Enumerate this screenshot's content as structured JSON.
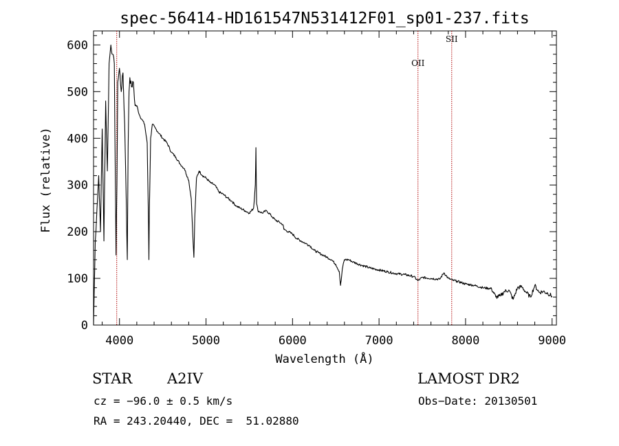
{
  "chart_data": {
    "type": "line",
    "title": "spec-56414-HD161547N531412F01_sp01-237.fits",
    "xlabel": "Wavelength (Å)",
    "ylabel": "Flux (relative)",
    "xlim": [
      3700,
      9050
    ],
    "ylim": [
      0,
      630
    ],
    "xticks": [
      4000,
      5000,
      6000,
      7000,
      8000,
      9000
    ],
    "yticks": [
      0,
      100,
      200,
      300,
      400,
      500,
      600
    ],
    "line_color": "#000000",
    "marker_color": "#b00000",
    "series": [
      {
        "x": [
          3700,
          3720,
          3740,
          3760,
          3780,
          3800,
          3820,
          3840,
          3860,
          3880,
          3900,
          3920,
          3940,
          3960,
          3970,
          3980,
          4000,
          4020,
          4040,
          4060,
          4080,
          4090,
          4100,
          4110,
          4120,
          4140,
          4160,
          4180,
          4200,
          4230,
          4260,
          4290,
          4320,
          4335,
          4340,
          4345,
          4360,
          4380,
          4420,
          4460,
          4500,
          4550,
          4600,
          4650,
          4700,
          4750,
          4800,
          4830,
          4850,
          4860,
          4870,
          4890,
          4920,
          4960,
          5000,
          5050,
          5100,
          5150,
          5200,
          5250,
          5300,
          5350,
          5400,
          5450,
          5500,
          5550,
          5570,
          5577,
          5585,
          5600,
          5650,
          5700,
          5750,
          5800,
          5850,
          5890,
          5900,
          5950,
          6000,
          6050,
          6100,
          6150,
          6200,
          6250,
          6300,
          6350,
          6400,
          6450,
          6500,
          6540,
          6555,
          6563,
          6575,
          6600,
          6650,
          6700,
          6800,
          6900,
          7000,
          7100,
          7200,
          7300,
          7400,
          7450,
          7500,
          7600,
          7700,
          7750,
          7800,
          7850,
          7900,
          8000,
          8100,
          8200,
          8300,
          8350,
          8400,
          8450,
          8500,
          8550,
          8600,
          8650,
          8700,
          8750,
          8800,
          8850,
          8900,
          8950,
          9000
        ],
        "y": [
          0,
          180,
          250,
          320,
          200,
          420,
          180,
          480,
          330,
          560,
          600,
          580,
          560,
          150,
          300,
          520,
          550,
          500,
          540,
          430,
          250,
          140,
          380,
          500,
          530,
          510,
          520,
          470,
          470,
          450,
          440,
          430,
          390,
          220,
          140,
          240,
          400,
          430,
          420,
          410,
          400,
          390,
          370,
          360,
          345,
          335,
          310,
          270,
          180,
          145,
          230,
          315,
          330,
          320,
          315,
          305,
          300,
          285,
          280,
          272,
          265,
          255,
          250,
          245,
          240,
          250,
          300,
          380,
          260,
          245,
          240,
          245,
          235,
          225,
          220,
          215,
          205,
          200,
          195,
          185,
          180,
          175,
          170,
          160,
          155,
          150,
          145,
          140,
          130,
          115,
          85,
          95,
          120,
          140,
          140,
          135,
          128,
          122,
          118,
          114,
          110,
          108,
          104,
          95,
          102,
          100,
          98,
          112,
          100,
          96,
          94,
          88,
          85,
          80,
          78,
          60,
          62,
          72,
          75,
          55,
          80,
          82,
          70,
          60,
          85,
          70,
          72,
          68,
          62
        ]
      }
    ],
    "line_markers": [
      {
        "x": 3968,
        "label": ""
      },
      {
        "x": 7450,
        "label": "OII"
      },
      {
        "x": 7840,
        "label": "SII"
      }
    ]
  },
  "info": {
    "object_class": "STAR",
    "subclass": "A2IV",
    "survey": "LAMOST DR2",
    "cz": "cz = −96.0 ± 0.5 km/s",
    "obs_date": "Obs−Date: 20130501",
    "radec": "RA = 243.20440, DEC =  51.02880"
  }
}
